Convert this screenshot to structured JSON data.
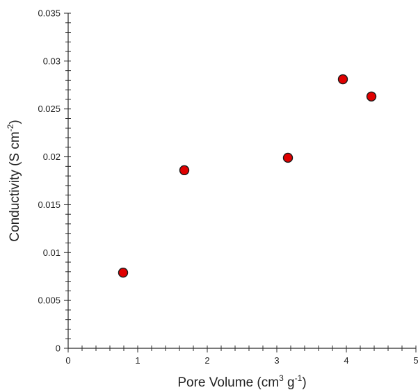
{
  "chart_data": {
    "type": "scatter",
    "xlabel": {
      "pre": "Pore Volume (cm",
      "sup1": "3",
      "mid": " g",
      "sup2": "-1",
      "post": ")"
    },
    "ylabel": {
      "pre": "Conductivity (S cm",
      "sup": "-2",
      "post": ")"
    },
    "xlim": [
      0,
      5
    ],
    "ylim": [
      0,
      0.035
    ],
    "x_ticks": [
      0,
      1,
      2,
      3,
      4,
      5
    ],
    "y_ticks": [
      0,
      0.005,
      0.01,
      0.015,
      0.02,
      0.025,
      0.03,
      0.035
    ],
    "x_tick_labels": [
      "0",
      "1",
      "2",
      "3",
      "4",
      "5"
    ],
    "y_tick_labels": [
      "0",
      "0.005",
      "0.01",
      "0.015",
      "0.02",
      "0.025",
      "0.03",
      "0.035"
    ],
    "grid": false,
    "legend": "none",
    "marker_color": "#e00000",
    "marker_edge_color": "#1a1a1a",
    "series": [
      {
        "points": [
          {
            "x": 0.79,
            "y": 0.0079
          },
          {
            "x": 1.67,
            "y": 0.0186
          },
          {
            "x": 3.16,
            "y": 0.0199
          },
          {
            "x": 3.95,
            "y": 0.0281
          },
          {
            "x": 4.36,
            "y": 0.0263
          }
        ]
      }
    ]
  }
}
